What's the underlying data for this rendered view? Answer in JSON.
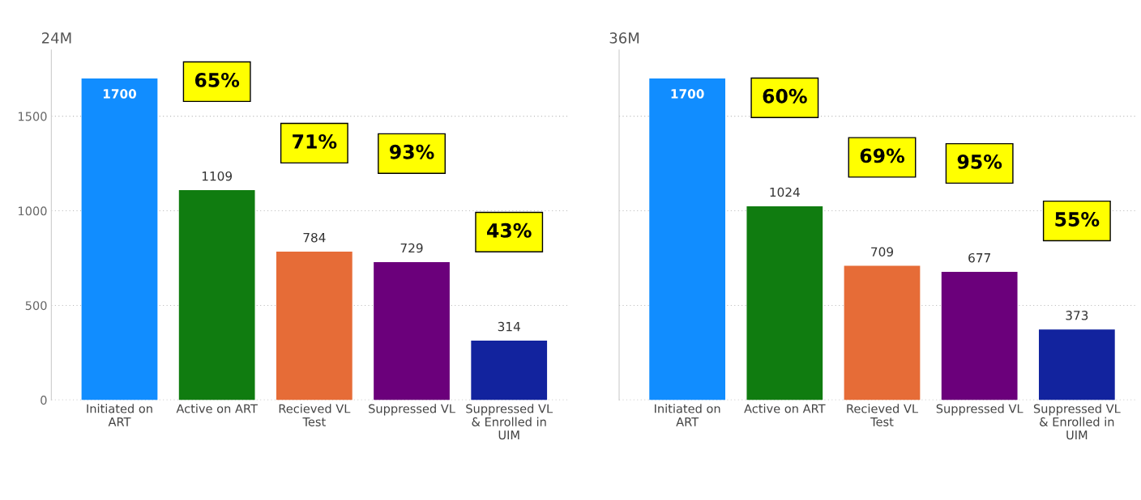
{
  "chart_data": [
    {
      "type": "bar",
      "title": "24M",
      "categories": [
        "Initiated on\nART",
        "Active on ART",
        "Recieved VL\nTest",
        "Suppressed VL",
        "Suppressed VL\n& Enrolled in\nUIM"
      ],
      "values": [
        1700,
        1109,
        784,
        729,
        314
      ],
      "colors": [
        "#118dff",
        "#107c10",
        "#e66c37",
        "#6b007b",
        "#12239e"
      ],
      "ylim": [
        0,
        1850
      ],
      "yticks": [
        0,
        500,
        1000,
        1500
      ],
      "grid": "y",
      "data_labels": true,
      "annotations": [
        "65%",
        "71%",
        "93%",
        "43%"
      ]
    },
    {
      "type": "bar",
      "title": "36M",
      "categories": [
        "Initiated on\nART",
        "Active on ART",
        "Recieved VL\nTest",
        "Suppressed VL",
        "Suppressed VL\n& Enrolled in\nUIM"
      ],
      "values": [
        1700,
        1024,
        709,
        677,
        373
      ],
      "colors": [
        "#118dff",
        "#107c10",
        "#e66c37",
        "#6b007b",
        "#12239e"
      ],
      "ylim": [
        0,
        1850
      ],
      "yticks": [
        0,
        500,
        1000,
        1500
      ],
      "grid": "y",
      "data_labels": true,
      "tick_labels": "x",
      "annotations": [
        "60%",
        "69%",
        "95%",
        "55%"
      ]
    }
  ]
}
